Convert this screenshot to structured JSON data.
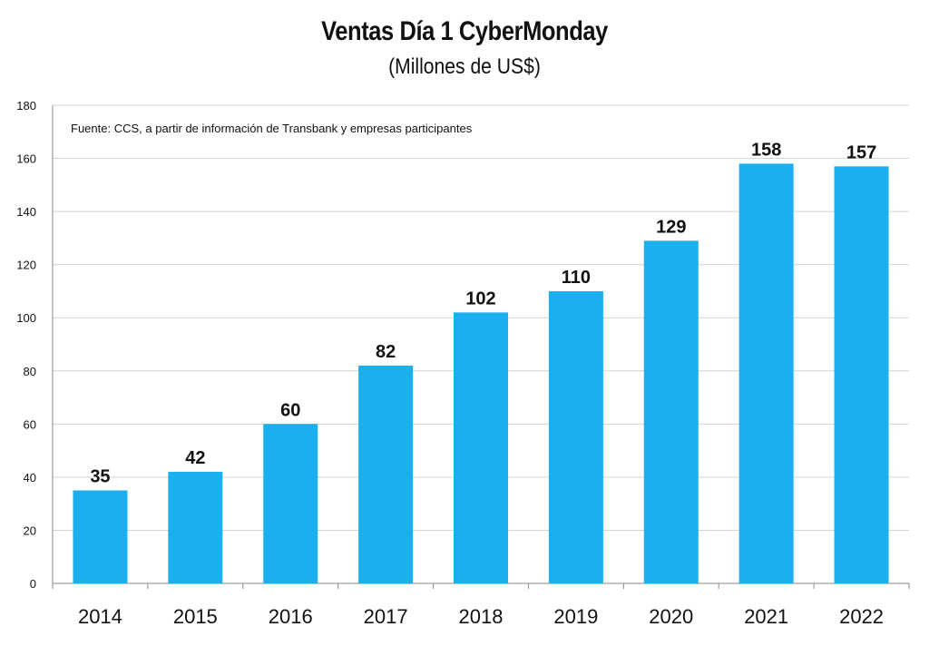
{
  "chart_data": {
    "type": "bar",
    "title": "Ventas Día 1 CyberMonday",
    "subtitle": "(Millones de US$)",
    "source_note": "Fuente: CCS, a partir de información de Transbank y empresas participantes",
    "categories": [
      "2014",
      "2015",
      "2016",
      "2017",
      "2018",
      "2019",
      "2020",
      "2021",
      "2022"
    ],
    "values": [
      35,
      42,
      60,
      82,
      102,
      110,
      129,
      158,
      157
    ],
    "data_labels": [
      "35",
      "42",
      "60",
      "82",
      "102",
      "110",
      "129",
      "158",
      "157"
    ],
    "xlabel": "",
    "ylabel": "",
    "ylim": [
      0,
      180
    ],
    "yticks": [
      0,
      20,
      40,
      60,
      80,
      100,
      120,
      140,
      160,
      180
    ],
    "grid": true,
    "legend": "none",
    "bar_color": "#1baff0"
  }
}
